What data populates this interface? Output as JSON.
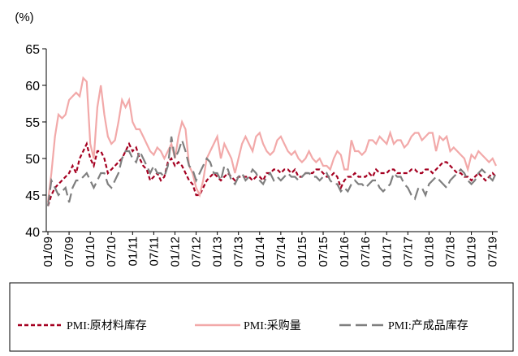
{
  "chart_data": {
    "type": "line",
    "y_label": "(%)",
    "categories": [
      "01/09",
      null,
      null,
      null,
      null,
      null,
      "07/09",
      null,
      null,
      null,
      null,
      null,
      "01/10",
      null,
      null,
      null,
      null,
      null,
      "07/10",
      null,
      null,
      null,
      null,
      null,
      "01/11",
      null,
      null,
      null,
      null,
      null,
      "07/11",
      null,
      null,
      null,
      null,
      null,
      "01/12",
      null,
      null,
      null,
      null,
      null,
      "07/12",
      null,
      null,
      null,
      null,
      null,
      "01/13",
      null,
      null,
      null,
      null,
      null,
      "07/13",
      null,
      null,
      null,
      null,
      null,
      "01/14",
      null,
      null,
      null,
      null,
      null,
      "07/14",
      null,
      null,
      null,
      null,
      null,
      "01/15",
      null,
      null,
      null,
      null,
      null,
      "07/15",
      null,
      null,
      null,
      null,
      null,
      "01/16",
      null,
      null,
      null,
      null,
      null,
      "07/16",
      null,
      null,
      null,
      null,
      null,
      "01/17",
      null,
      null,
      null,
      null,
      null,
      "07/17",
      null,
      null,
      null,
      null,
      null,
      "01/18",
      null,
      null,
      null,
      null,
      null,
      "07/18",
      null,
      null,
      null,
      null,
      null,
      "01/19",
      null,
      null,
      null,
      null,
      null,
      "07/19",
      null
    ],
    "series": [
      {
        "name": "PMI:原材料库存",
        "color": "#a50021",
        "dash": "5,3",
        "values": [
          43.5,
          45,
          46,
          46.5,
          47,
          47.5,
          48,
          49,
          48,
          50,
          51,
          52,
          50,
          49,
          51,
          51,
          50,
          48,
          48.5,
          49,
          49.5,
          50,
          51,
          52,
          51,
          51.5,
          50,
          49,
          48.5,
          47,
          47.5,
          48,
          47,
          47.5,
          49.5,
          50,
          49,
          49.5,
          49,
          48,
          47,
          46.5,
          45,
          45,
          46,
          47,
          47.5,
          48,
          47.5,
          47,
          47.5,
          48,
          47.5,
          47,
          47.5,
          47.5,
          47.5,
          47.5,
          47,
          47.5,
          47.5,
          47,
          48,
          48,
          48.5,
          48.5,
          48,
          48.5,
          48.5,
          48,
          48.5,
          47.5,
          47.5,
          48,
          48,
          48,
          48.5,
          48.5,
          48,
          47.5,
          47.5,
          48,
          47.5,
          46,
          47,
          47.5,
          47.5,
          48,
          47.5,
          47.5,
          47.5,
          48,
          47.5,
          48.5,
          48,
          48,
          48,
          48.5,
          48.5,
          48,
          48,
          48,
          48,
          48.5,
          48.5,
          48,
          48,
          48.5,
          48.5,
          48,
          48.5,
          49,
          49.5,
          49.5,
          49,
          48.5,
          48,
          48,
          47.5,
          47.5,
          47,
          47.5,
          48,
          47.5,
          47,
          47.5,
          48,
          47.5
        ]
      },
      {
        "name": "PMI:采购量",
        "color": "#f2a9a9",
        "dash": "",
        "values": [
          44,
          48,
          53,
          56,
          55.5,
          56,
          58,
          58.5,
          59,
          58.5,
          61,
          60.5,
          52,
          50,
          57,
          60,
          56,
          53,
          52,
          52.5,
          55,
          58,
          57,
          58,
          55,
          54,
          54,
          53,
          52,
          51,
          50.5,
          51.5,
          51,
          50,
          51,
          52,
          50,
          53,
          55,
          54,
          49,
          48,
          46,
          45,
          47,
          50,
          51,
          52,
          53,
          50,
          52,
          51,
          50,
          48,
          50,
          52,
          53,
          52,
          51,
          53,
          53.5,
          52,
          51,
          50.5,
          51,
          52.5,
          53,
          52,
          51,
          50.5,
          51,
          50,
          49.5,
          50,
          51,
          50,
          49.5,
          50,
          49,
          49,
          48.5,
          50,
          51,
          50.5,
          48.5,
          48.5,
          52.5,
          51,
          51,
          50.5,
          51,
          52.5,
          52.5,
          52,
          53,
          52.5,
          52,
          53.5,
          52,
          52.5,
          52.5,
          51.5,
          52,
          53,
          53.5,
          53.5,
          52.5,
          53,
          53.5,
          53.5,
          51,
          53,
          52.5,
          53,
          51,
          51.5,
          51,
          50.5,
          50,
          48.5,
          50.5,
          50,
          51,
          50.5,
          50,
          49.5,
          50,
          49
        ]
      },
      {
        "name": "PMI:产成品库存",
        "color": "#7f7f7f",
        "dash": "14,6",
        "values": [
          43.5,
          47,
          46,
          45,
          45.5,
          46,
          44,
          46,
          47,
          47,
          47.5,
          48,
          47,
          46,
          47,
          48,
          48,
          46.5,
          46,
          47,
          48,
          50,
          51,
          51,
          50,
          49.5,
          51,
          50,
          49,
          48,
          49,
          48,
          48,
          47.5,
          49,
          53,
          50,
          51,
          52.5,
          51,
          49,
          48.5,
          47,
          48,
          49,
          50,
          49.5,
          48,
          48,
          47,
          49,
          48.5,
          47,
          46.5,
          47.5,
          48,
          47,
          47.5,
          48.5,
          48,
          47,
          46.5,
          47.5,
          48,
          47,
          47.5,
          47,
          47.5,
          48,
          47.5,
          47.5,
          47,
          47.5,
          48,
          48,
          47.5,
          47.5,
          47,
          47.5,
          48,
          47,
          46.5,
          46.5,
          45.5,
          46,
          45.5,
          46.5,
          47,
          46.5,
          46.5,
          46,
          46.5,
          47,
          47,
          46,
          45.5,
          46,
          46.5,
          48,
          47.5,
          47.5,
          46.5,
          46,
          45,
          44.5,
          46,
          46,
          45,
          46.5,
          47,
          47.5,
          47,
          46.5,
          46,
          47,
          47.5,
          48,
          48.5,
          48,
          47,
          46.5,
          47,
          48,
          48.5,
          48,
          47.5,
          47,
          48
        ]
      }
    ],
    "ylim": [
      40,
      65
    ],
    "yticks": [
      40,
      45,
      50,
      55,
      60,
      65
    ]
  }
}
